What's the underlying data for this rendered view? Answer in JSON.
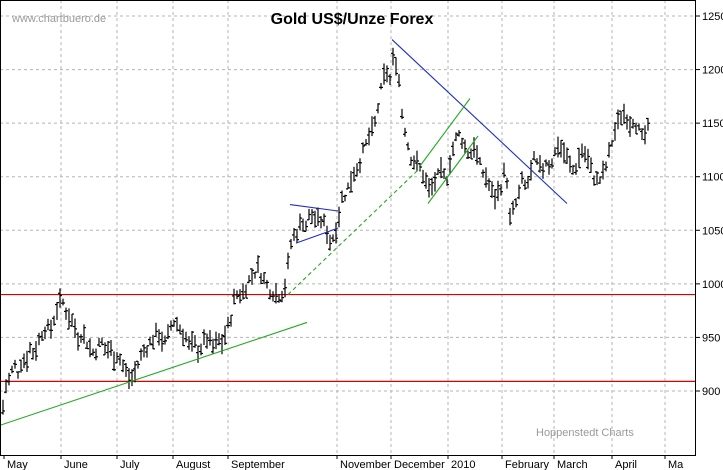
{
  "chart_data": {
    "type": "bar",
    "subtype": "ohlc",
    "title": "Gold US$/Unze Forex",
    "watermark": "www.chartbuero.de",
    "credit": "Hoppenstedt Charts",
    "ylim": [
      850,
      1265
    ],
    "y_ticks": [
      900,
      950,
      1000,
      1050,
      1100,
      1150,
      1200,
      1250
    ],
    "x_labels": [
      "May",
      "June",
      "July",
      "August",
      "September",
      "November",
      "December",
      "2010",
      "February",
      "March",
      "April",
      "Ma"
    ],
    "grid": true,
    "colors": {
      "bars": "#000000",
      "support_lines": "#dd0000",
      "up_trend": "#22aa22",
      "down_trend": "#1f2ec8",
      "grid": "#b5b5b5"
    },
    "horizontal_lines": [
      990,
      909
    ],
    "price_path": [
      [
        0,
        890
      ],
      [
        3,
        885
      ],
      [
        6,
        905
      ],
      [
        10,
        912
      ],
      [
        14,
        925
      ],
      [
        18,
        918
      ],
      [
        22,
        930
      ],
      [
        26,
        928
      ],
      [
        30,
        940
      ],
      [
        34,
        935
      ],
      [
        38,
        945
      ],
      [
        42,
        955
      ],
      [
        46,
        960
      ],
      [
        50,
        955
      ],
      [
        54,
        968
      ],
      [
        58,
        980
      ],
      [
        62,
        985
      ],
      [
        66,
        975
      ],
      [
        70,
        968
      ],
      [
        74,
        962
      ],
      [
        78,
        950
      ],
      [
        82,
        955
      ],
      [
        86,
        948
      ],
      [
        90,
        940
      ],
      [
        94,
        935
      ],
      [
        98,
        942
      ],
      [
        102,
        945
      ],
      [
        106,
        938
      ],
      [
        110,
        940
      ],
      [
        114,
        932
      ],
      [
        118,
        935
      ],
      [
        122,
        925
      ],
      [
        126,
        918
      ],
      [
        130,
        910
      ],
      [
        134,
        915
      ],
      [
        138,
        925
      ],
      [
        142,
        935
      ],
      [
        146,
        940
      ],
      [
        150,
        945
      ],
      [
        154,
        950
      ],
      [
        158,
        955
      ],
      [
        162,
        948
      ],
      [
        166,
        943
      ],
      [
        170,
        960
      ],
      [
        174,
        965
      ],
      [
        178,
        962
      ],
      [
        182,
        955
      ],
      [
        186,
        950
      ],
      [
        190,
        940
      ],
      [
        194,
        945
      ],
      [
        198,
        938
      ],
      [
        202,
        942
      ],
      [
        206,
        950
      ],
      [
        210,
        945
      ],
      [
        214,
        940
      ],
      [
        218,
        948
      ],
      [
        222,
        945
      ],
      [
        226,
        955
      ],
      [
        230,
        965
      ],
      [
        234,
        985
      ],
      [
        238,
        992
      ],
      [
        242,
        990
      ],
      [
        246,
        998
      ],
      [
        250,
        1005
      ],
      [
        254,
        1010
      ],
      [
        258,
        1015
      ],
      [
        262,
        1008
      ],
      [
        266,
        1000
      ],
      [
        270,
        995
      ],
      [
        274,
        992
      ],
      [
        278,
        990
      ],
      [
        282,
        992
      ],
      [
        286,
        1000
      ],
      [
        290,
        1035
      ],
      [
        294,
        1045
      ],
      [
        298,
        1050
      ],
      [
        302,
        1060
      ],
      [
        306,
        1055
      ],
      [
        310,
        1065
      ],
      [
        314,
        1062
      ],
      [
        318,
        1058
      ],
      [
        322,
        1060
      ],
      [
        326,
        1052
      ],
      [
        330,
        1040
      ],
      [
        334,
        1045
      ],
      [
        338,
        1060
      ],
      [
        342,
        1080
      ],
      [
        346,
        1085
      ],
      [
        350,
        1095
      ],
      [
        354,
        1105
      ],
      [
        358,
        1110
      ],
      [
        362,
        1120
      ],
      [
        366,
        1130
      ],
      [
        370,
        1140
      ],
      [
        374,
        1145
      ],
      [
        378,
        1165
      ],
      [
        382,
        1185
      ],
      [
        386,
        1200
      ],
      [
        390,
        1190
      ],
      [
        394,
        1215
      ],
      [
        398,
        1200
      ],
      [
        402,
        1160
      ],
      [
        406,
        1140
      ],
      [
        410,
        1120
      ],
      [
        414,
        1115
      ],
      [
        418,
        1110
      ],
      [
        422,
        1105
      ],
      [
        426,
        1095
      ],
      [
        430,
        1085
      ],
      [
        434,
        1095
      ],
      [
        438,
        1100
      ],
      [
        442,
        1105
      ],
      [
        446,
        1095
      ],
      [
        450,
        1115
      ],
      [
        454,
        1130
      ],
      [
        458,
        1140
      ],
      [
        462,
        1135
      ],
      [
        466,
        1125
      ],
      [
        470,
        1120
      ],
      [
        474,
        1130
      ],
      [
        478,
        1115
      ],
      [
        482,
        1105
      ],
      [
        486,
        1100
      ],
      [
        490,
        1090
      ],
      [
        494,
        1080
      ],
      [
        498,
        1085
      ],
      [
        502,
        1095
      ],
      [
        506,
        1110
      ],
      [
        510,
        1060
      ],
      [
        514,
        1070
      ],
      [
        518,
        1080
      ],
      [
        522,
        1095
      ],
      [
        526,
        1090
      ],
      [
        530,
        1100
      ],
      [
        534,
        1115
      ],
      [
        538,
        1110
      ],
      [
        542,
        1105
      ],
      [
        546,
        1115
      ],
      [
        550,
        1110
      ],
      [
        554,
        1120
      ],
      [
        558,
        1130
      ],
      [
        562,
        1125
      ],
      [
        566,
        1120
      ],
      [
        570,
        1110
      ],
      [
        574,
        1105
      ],
      [
        578,
        1115
      ],
      [
        582,
        1125
      ],
      [
        586,
        1120
      ],
      [
        590,
        1110
      ],
      [
        594,
        1100
      ],
      [
        598,
        1095
      ],
      [
        602,
        1100
      ],
      [
        606,
        1110
      ],
      [
        610,
        1125
      ],
      [
        614,
        1140
      ],
      [
        618,
        1150
      ],
      [
        622,
        1160
      ],
      [
        626,
        1158
      ],
      [
        630,
        1150
      ],
      [
        634,
        1155
      ],
      [
        638,
        1145
      ],
      [
        642,
        1135
      ],
      [
        646,
        1140
      ],
      [
        650,
        1148
      ]
    ],
    "trend_lines": [
      {
        "style": "solid",
        "color": "#22aa22",
        "from": [
          0,
          868
        ],
        "to": [
          307,
          964
        ]
      },
      {
        "style": "dashed",
        "color": "#22aa22",
        "from": [
          288,
          990
        ],
        "to": [
          420,
          1108
        ]
      },
      {
        "style": "solid",
        "color": "#1f2ec8",
        "from": [
          290,
          1074
        ],
        "to": [
          338,
          1068
        ]
      },
      {
        "style": "solid",
        "color": "#1f2ec8",
        "from": [
          296,
          1038
        ],
        "to": [
          338,
          1052
        ]
      },
      {
        "style": "solid",
        "color": "#1f2ec8",
        "from": [
          392,
          1228
        ],
        "to": [
          567,
          1075
        ]
      },
      {
        "style": "solid",
        "color": "#22aa22",
        "from": [
          420,
          1110
        ],
        "to": [
          470,
          1173
        ]
      },
      {
        "style": "solid",
        "color": "#22aa22",
        "from": [
          428,
          1075
        ],
        "to": [
          478,
          1138
        ]
      }
    ]
  }
}
